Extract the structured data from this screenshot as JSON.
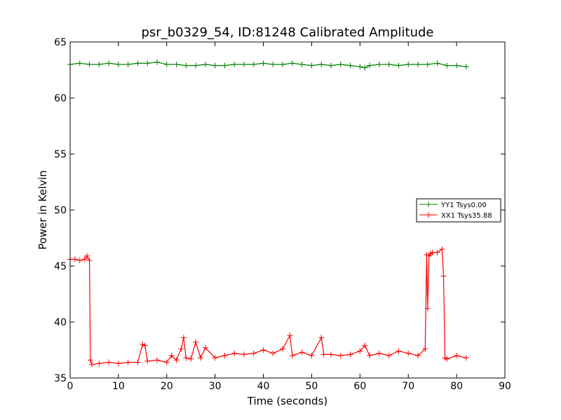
{
  "chart_data": {
    "type": "line",
    "title": "psr_b0329_54, ID:81248 Calibrated Amplitude",
    "xlabel": "Time (seconds)",
    "ylabel": "Power in Kelvin",
    "xlim": [
      0,
      90
    ],
    "ylim": [
      35,
      65
    ],
    "xticks": [
      "0",
      "10",
      "20",
      "30",
      "40",
      "50",
      "60",
      "70",
      "80",
      "90"
    ],
    "yticks": [
      "35",
      "40",
      "45",
      "50",
      "55",
      "60",
      "65"
    ],
    "grid": false,
    "legend_placement": "center-right",
    "series": [
      {
        "name": "YY1 Tsys0.00",
        "color": "#008000",
        "marker": "+",
        "x": [
          0,
          2,
          4,
          6,
          8,
          10,
          12,
          14,
          16,
          18,
          20,
          22,
          24,
          26,
          28,
          30,
          32,
          34,
          36,
          38,
          40,
          42,
          44,
          46,
          48,
          50,
          52,
          54,
          56,
          58,
          60,
          61,
          62,
          64,
          66,
          68,
          70,
          72,
          74,
          76,
          78,
          80,
          82
        ],
        "y": [
          63.0,
          63.1,
          63.0,
          63.0,
          63.1,
          63.0,
          63.0,
          63.1,
          63.1,
          63.2,
          63.0,
          63.0,
          62.9,
          62.9,
          63.0,
          62.9,
          62.9,
          63.0,
          63.0,
          63.0,
          63.1,
          63.0,
          63.0,
          63.1,
          63.0,
          62.9,
          63.0,
          62.9,
          63.0,
          62.9,
          62.8,
          62.7,
          62.9,
          63.0,
          63.0,
          62.9,
          63.0,
          63.0,
          63.0,
          63.1,
          62.9,
          62.9,
          62.8
        ]
      },
      {
        "name": "XX1 Tsys35.88",
        "color": "#ff0000",
        "marker": "+",
        "x": [
          0,
          1,
          2,
          3,
          3.5,
          4,
          4.2,
          4.5,
          6,
          8,
          10,
          12,
          14,
          15,
          15.5,
          16,
          18,
          20,
          21,
          22,
          23,
          23.5,
          24,
          25,
          26,
          27,
          28,
          30,
          32,
          34,
          36,
          38,
          40,
          42,
          44,
          45.5,
          46,
          48,
          50,
          52,
          52.5,
          54,
          56,
          58,
          60,
          61,
          62,
          64,
          66,
          68,
          70,
          72,
          73.5,
          73.8,
          74,
          74.3,
          74.6,
          75,
          76,
          77,
          77.3,
          77.6,
          78,
          80,
          82
        ],
        "y": [
          45.6,
          45.6,
          45.5,
          45.6,
          45.9,
          45.5,
          36.6,
          36.2,
          36.3,
          36.4,
          36.3,
          36.4,
          36.4,
          38.0,
          37.9,
          36.5,
          36.6,
          36.4,
          37.0,
          36.6,
          37.6,
          38.6,
          36.8,
          36.7,
          38.2,
          36.8,
          37.7,
          36.8,
          37.0,
          37.2,
          37.1,
          37.2,
          37.5,
          37.2,
          37.6,
          38.8,
          37.0,
          37.3,
          37.0,
          38.6,
          37.1,
          37.1,
          37.0,
          37.1,
          37.4,
          37.9,
          37.0,
          37.2,
          37.0,
          37.4,
          37.2,
          37.0,
          37.6,
          46.0,
          41.2,
          45.9,
          46.1,
          46.2,
          46.2,
          46.5,
          44.1,
          36.8,
          36.7,
          37.0,
          36.8
        ]
      }
    ]
  }
}
